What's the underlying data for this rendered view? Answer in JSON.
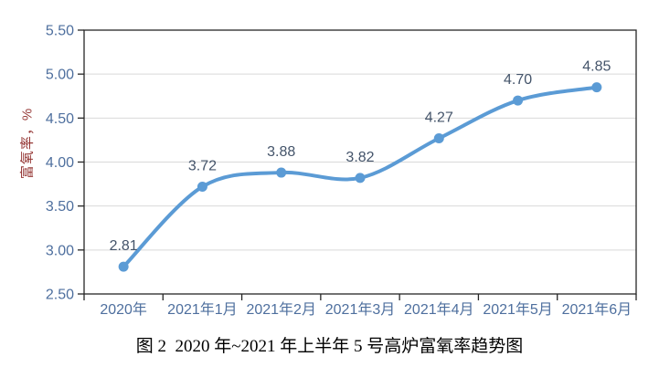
{
  "figure": {
    "caption": "图 2  2020 年~2021 年上半年 5 号高炉富氧率趋势图"
  },
  "colors": {
    "line": "#5B9BD5",
    "marker": "#5B9BD5",
    "grid": "#D9D9D9",
    "axis": "#262626",
    "tick_label": "#4E6F9E",
    "data_label": "#44546A",
    "axis_title": "#953735",
    "caption_text": "#000000",
    "background": "#FFFFFF"
  },
  "chart_data": {
    "type": "line",
    "title": "",
    "xlabel": "",
    "ylabel": "富氧率，%",
    "categories": [
      "2020年",
      "2021年1月",
      "2021年2月",
      "2021年3月",
      "2021年4月",
      "2021年5月",
      "2021年6月"
    ],
    "series": [
      {
        "name": "富氧率",
        "values": [
          2.81,
          3.72,
          3.88,
          3.82,
          4.27,
          4.7,
          4.85
        ]
      }
    ],
    "point_labels": [
      "2.81",
      "3.72",
      "3.88",
      "3.82",
      "4.27",
      "4.70",
      "4.85"
    ],
    "ylim": [
      2.5,
      5.5
    ],
    "y_tick_step": 0.5,
    "y_tick_labels": [
      "2.50",
      "3.00",
      "3.50",
      "4.00",
      "4.50",
      "5.00",
      "5.50"
    ],
    "grid": "horizontal",
    "legend": "none",
    "smooth": true,
    "marker": "circle"
  }
}
